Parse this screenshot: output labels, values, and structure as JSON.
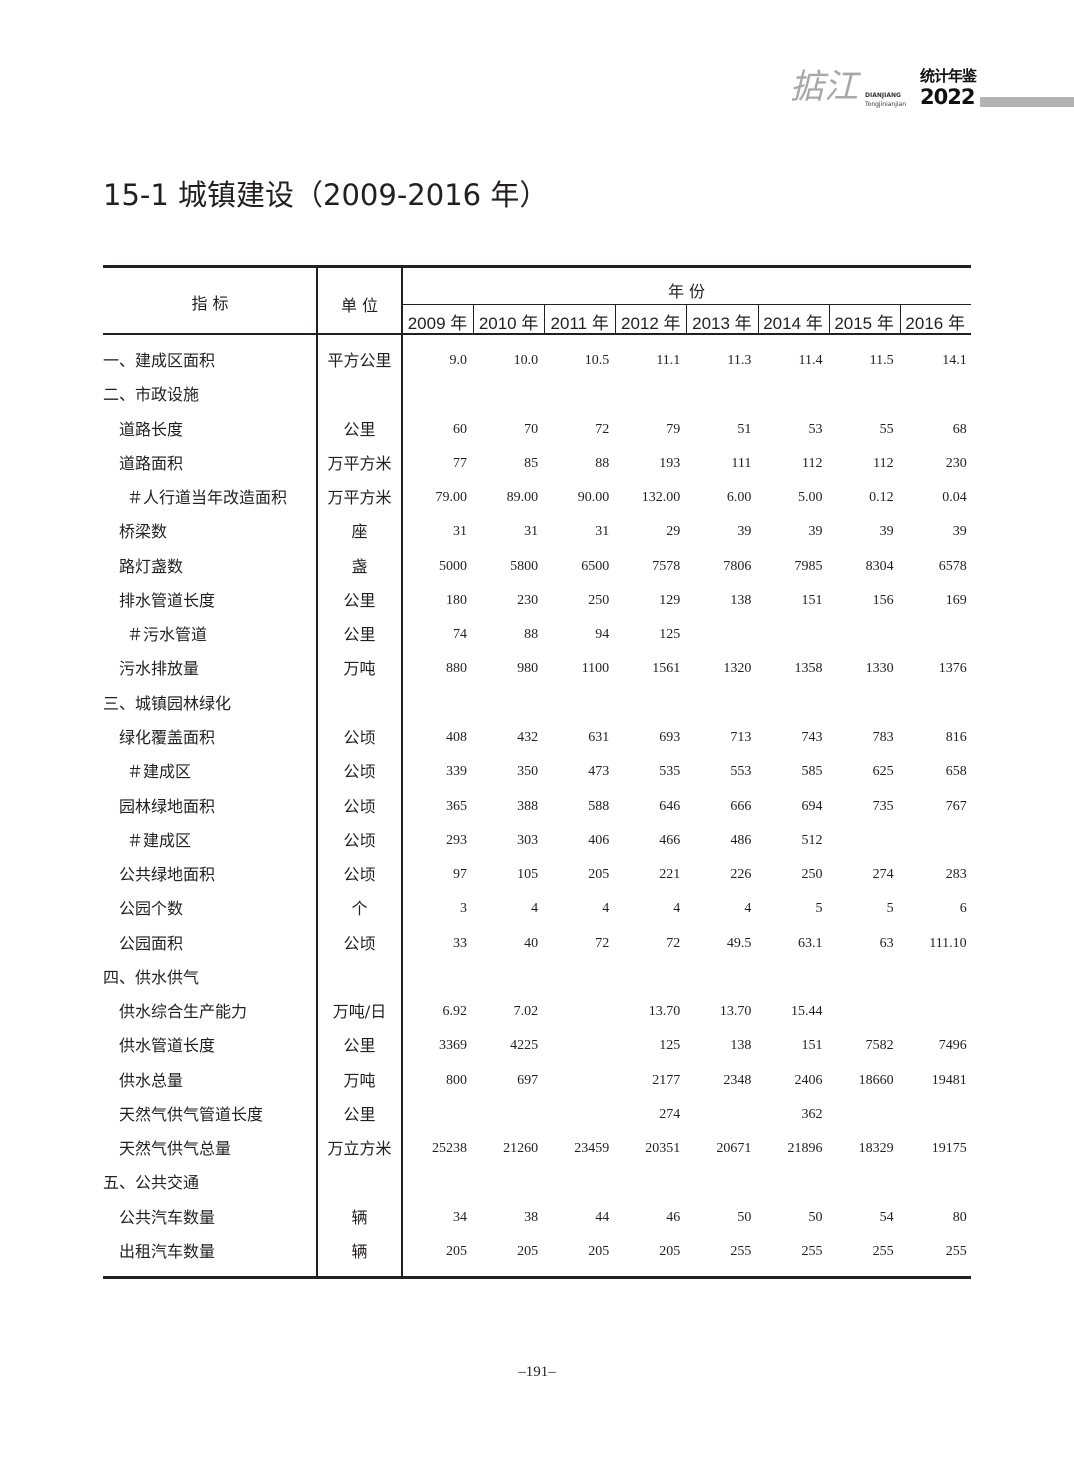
{
  "header": {
    "logo_brush": "掂江",
    "logo_en_1": "DIANJIANG",
    "logo_en_2": "Tongjinianjian",
    "logo_cn": "统计年鉴",
    "logo_year": "2022",
    "bar_color": "#b3b3b3"
  },
  "title": "15-1  城镇建设（2009-2016 年）",
  "table": {
    "col_indicator": "指  标",
    "col_unit": "单  位",
    "col_year_group": "年  份",
    "years": [
      "2009 年",
      "2010 年",
      "2011 年",
      "2012 年",
      "2013 年",
      "2014 年",
      "2015 年",
      "2016 年"
    ],
    "rows": [
      {
        "label": "一、建成区面积",
        "level": 0,
        "unit": "平方公里",
        "values": [
          "9.0",
          "10.0",
          "10.5",
          "11.1",
          "11.3",
          "11.4",
          "11.5",
          "14.1"
        ]
      },
      {
        "label": "二、市政设施",
        "level": 0,
        "unit": "",
        "values": [
          "",
          "",
          "",
          "",
          "",
          "",
          "",
          ""
        ]
      },
      {
        "label": "道路长度",
        "level": 1,
        "unit": "公里",
        "values": [
          "60",
          "70",
          "72",
          "79",
          "51",
          "53",
          "55",
          "68"
        ]
      },
      {
        "label": "道路面积",
        "level": 1,
        "unit": "万平方米",
        "values": [
          "77",
          "85",
          "88",
          "193",
          "111",
          "112",
          "112",
          "230"
        ]
      },
      {
        "label": "＃人行道当年改造面积",
        "level": 2,
        "unit": "万平方米",
        "values": [
          "79.00",
          "89.00",
          "90.00",
          "132.00",
          "6.00",
          "5.00",
          "0.12",
          "0.04"
        ]
      },
      {
        "label": "桥梁数",
        "level": 1,
        "unit": "座",
        "values": [
          "31",
          "31",
          "31",
          "29",
          "39",
          "39",
          "39",
          "39"
        ]
      },
      {
        "label": "路灯盏数",
        "level": 1,
        "unit": "盏",
        "values": [
          "5000",
          "5800",
          "6500",
          "7578",
          "7806",
          "7985",
          "8304",
          "6578"
        ]
      },
      {
        "label": "排水管道长度",
        "level": 1,
        "unit": "公里",
        "values": [
          "180",
          "230",
          "250",
          "129",
          "138",
          "151",
          "156",
          "169"
        ]
      },
      {
        "label": "＃污水管道",
        "level": 2,
        "unit": "公里",
        "values": [
          "74",
          "88",
          "94",
          "125",
          "",
          "",
          "",
          ""
        ]
      },
      {
        "label": "污水排放量",
        "level": 1,
        "unit": "万吨",
        "values": [
          "880",
          "980",
          "1100",
          "1561",
          "1320",
          "1358",
          "1330",
          "1376"
        ]
      },
      {
        "label": "三、城镇园林绿化",
        "level": 0,
        "unit": "",
        "values": [
          "",
          "",
          "",
          "",
          "",
          "",
          "",
          ""
        ]
      },
      {
        "label": "绿化覆盖面积",
        "level": 1,
        "unit": "公顷",
        "values": [
          "408",
          "432",
          "631",
          "693",
          "713",
          "743",
          "783",
          "816"
        ]
      },
      {
        "label": "＃建成区",
        "level": 2,
        "unit": "公顷",
        "values": [
          "339",
          "350",
          "473",
          "535",
          "553",
          "585",
          "625",
          "658"
        ]
      },
      {
        "label": "园林绿地面积",
        "level": 1,
        "unit": "公顷",
        "values": [
          "365",
          "388",
          "588",
          "646",
          "666",
          "694",
          "735",
          "767"
        ]
      },
      {
        "label": "＃建成区",
        "level": 2,
        "unit": "公顷",
        "values": [
          "293",
          "303",
          "406",
          "466",
          "486",
          "512",
          "",
          ""
        ]
      },
      {
        "label": "公共绿地面积",
        "level": 1,
        "unit": "公顷",
        "values": [
          "97",
          "105",
          "205",
          "221",
          "226",
          "250",
          "274",
          "283"
        ]
      },
      {
        "label": "公园个数",
        "level": 1,
        "unit": "个",
        "values": [
          "3",
          "4",
          "4",
          "4",
          "4",
          "5",
          "5",
          "6"
        ]
      },
      {
        "label": "公园面积",
        "level": 1,
        "unit": "公顷",
        "values": [
          "33",
          "40",
          "72",
          "72",
          "49.5",
          "63.1",
          "63",
          "111.10"
        ]
      },
      {
        "label": "四、供水供气",
        "level": 0,
        "unit": "",
        "values": [
          "",
          "",
          "",
          "",
          "",
          "",
          "",
          ""
        ]
      },
      {
        "label": "供水综合生产能力",
        "level": 1,
        "unit": "万吨/日",
        "values": [
          "6.92",
          "7.02",
          "",
          "13.70",
          "13.70",
          "15.44",
          "",
          ""
        ]
      },
      {
        "label": "供水管道长度",
        "level": 1,
        "unit": "公里",
        "values": [
          "3369",
          "4225",
          "",
          "125",
          "138",
          "151",
          "7582",
          "7496"
        ]
      },
      {
        "label": "供水总量",
        "level": 1,
        "unit": "万吨",
        "values": [
          "800",
          "697",
          "",
          "2177",
          "2348",
          "2406",
          "18660",
          "19481"
        ]
      },
      {
        "label": "天然气供气管道长度",
        "level": 1,
        "unit": "公里",
        "values": [
          "",
          "",
          "",
          "274",
          "",
          "362",
          "",
          ""
        ]
      },
      {
        "label": "天然气供气总量",
        "level": 1,
        "unit": "万立方米",
        "values": [
          "25238",
          "21260",
          "23459",
          "20351",
          "20671",
          "21896",
          "18329",
          "19175"
        ]
      },
      {
        "label": "五、公共交通",
        "level": 0,
        "unit": "",
        "values": [
          "",
          "",
          "",
          "",
          "",
          "",
          "",
          ""
        ]
      },
      {
        "label": "公共汽车数量",
        "level": 1,
        "unit": "辆",
        "values": [
          "34",
          "38",
          "44",
          "46",
          "50",
          "50",
          "54",
          "80"
        ]
      },
      {
        "label": "出租汽车数量",
        "level": 1,
        "unit": "辆",
        "values": [
          "205",
          "205",
          "205",
          "205",
          "255",
          "255",
          "255",
          "255"
        ]
      }
    ]
  },
  "page_number": "–191–"
}
